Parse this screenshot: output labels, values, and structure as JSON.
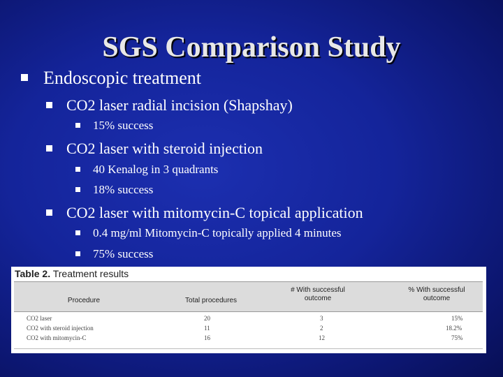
{
  "slide": {
    "title": "SGS Comparison Study",
    "bullets": [
      {
        "text": "Endoscopic treatment",
        "children": [
          {
            "text": "CO2 laser radial incision (Shapshay)",
            "children": [
              "15% success"
            ]
          },
          {
            "text": "CO2 laser with steroid injection",
            "children": [
              "40 Kenalog in 3 quadrants",
              "18% success"
            ]
          },
          {
            "text": "CO2 laser with mitomycin-C topical application",
            "children": [
              "0.4 mg/ml Mitomycin-C topically applied 4 minutes",
              "75% success"
            ]
          }
        ]
      }
    ]
  },
  "table": {
    "label": "Table 2.",
    "caption": "Treatment results",
    "headers": {
      "procedure": "Procedure",
      "total": "Total procedures",
      "successful_1": "# With successful",
      "successful_2": "outcome",
      "pct_1": "% With successful",
      "pct_2": "outcome"
    },
    "rows": [
      {
        "procedure": "CO2 laser",
        "total": "20",
        "successful": "3",
        "pct": "15%"
      },
      {
        "procedure": "CO2 with steroid injection",
        "total": "11",
        "successful": "2",
        "pct": "18.2%"
      },
      {
        "procedure": "CO2 with mitomycin-C",
        "total": "16",
        "successful": "12",
        "pct": "75%"
      }
    ]
  }
}
